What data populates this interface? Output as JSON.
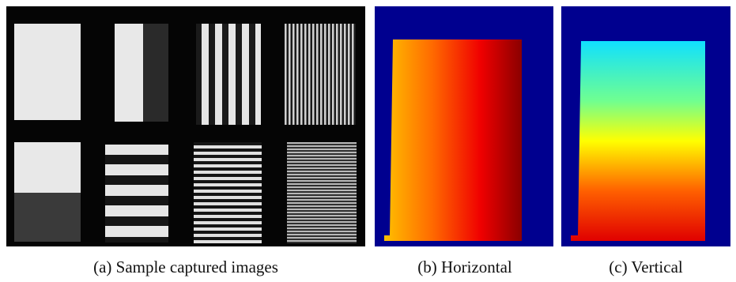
{
  "figure": {
    "subfigures": [
      {
        "caption": "(a) Sample captured images"
      },
      {
        "caption": "(b) Horizontal"
      },
      {
        "caption": "(c) Vertical"
      }
    ]
  }
}
